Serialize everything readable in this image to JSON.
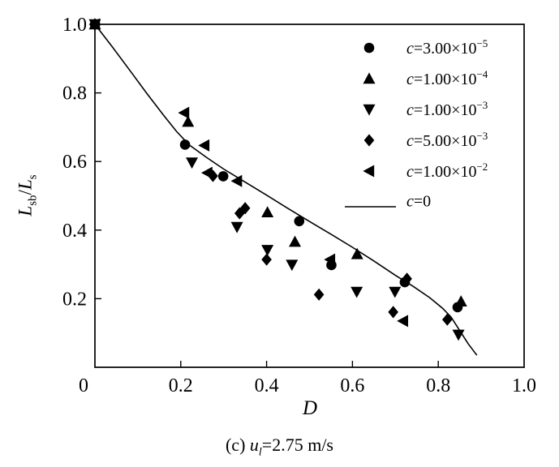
{
  "chart_data": {
    "type": "scatter",
    "title": "",
    "xlabel": "D",
    "ylabel": "Lsb/Ls",
    "ylabel_parts": {
      "num_var": "L",
      "num_sub": "sb",
      "divider": "/",
      "den_var": "L",
      "den_sub": "s"
    },
    "xlim": [
      0,
      1.0
    ],
    "ylim": [
      0,
      1.0
    ],
    "grid": "off",
    "legend_position": "top-right-inside",
    "x_ticks": [
      {
        "v": 0.0,
        "t": "0"
      },
      {
        "v": 0.2,
        "t": "0.2"
      },
      {
        "v": 0.4,
        "t": "0.4"
      },
      {
        "v": 0.6,
        "t": "0.6"
      },
      {
        "v": 0.8,
        "t": "0.8"
      },
      {
        "v": 1.0,
        "t": "1.0"
      }
    ],
    "y_ticks": [
      {
        "v": 0.2,
        "t": "0.2"
      },
      {
        "v": 0.4,
        "t": "0.4"
      },
      {
        "v": 0.6,
        "t": "0.6"
      },
      {
        "v": 0.8,
        "t": "0.8"
      },
      {
        "v": 1.0,
        "t": "1.0"
      }
    ],
    "series": [
      {
        "id": "c-3e-5",
        "marker": "circle",
        "label": {
          "var": "c",
          "base": "=3.00×10",
          "exp": "−5"
        },
        "points": [
          [
            0,
            1.0
          ],
          [
            0.21,
            0.649
          ],
          [
            0.299,
            0.557
          ],
          [
            0.476,
            0.426
          ],
          [
            0.551,
            0.298
          ],
          [
            0.722,
            0.248
          ],
          [
            0.845,
            0.175
          ]
        ]
      },
      {
        "id": "c-1e-4",
        "marker": "triangle-up",
        "label": {
          "var": "c",
          "base": "=1.00×10",
          "exp": "−4"
        },
        "points": [
          [
            0,
            1.0
          ],
          [
            0.217,
            0.716
          ],
          [
            0.402,
            0.452
          ],
          [
            0.466,
            0.366
          ],
          [
            0.611,
            0.33
          ],
          [
            0.853,
            0.192
          ]
        ]
      },
      {
        "id": "c-1e-3",
        "marker": "triangle-down",
        "label": {
          "var": "c",
          "base": "=1.00×10",
          "exp": "−3"
        },
        "points": [
          [
            0,
            1.0
          ],
          [
            0.226,
            0.597
          ],
          [
            0.331,
            0.409
          ],
          [
            0.402,
            0.342
          ],
          [
            0.459,
            0.299
          ],
          [
            0.61,
            0.22
          ],
          [
            0.699,
            0.22
          ],
          [
            0.847,
            0.095
          ]
        ]
      },
      {
        "id": "c-5e-3",
        "marker": "diamond",
        "label": {
          "var": "c",
          "base": "=5.00×10",
          "exp": "−3"
        },
        "points": [
          [
            0,
            1.0
          ],
          [
            0.275,
            0.558
          ],
          [
            0.337,
            0.449
          ],
          [
            0.35,
            0.464
          ],
          [
            0.4,
            0.314
          ],
          [
            0.522,
            0.212
          ],
          [
            0.695,
            0.161
          ],
          [
            0.727,
            0.258
          ],
          [
            0.821,
            0.139
          ]
        ]
      },
      {
        "id": "c-1e-2",
        "marker": "triangle-left",
        "label": {
          "var": "c",
          "base": "=1.00×10",
          "exp": "−2"
        },
        "points": [
          [
            0,
            1.0
          ],
          [
            0.208,
            0.742
          ],
          [
            0.255,
            0.647
          ],
          [
            0.262,
            0.567
          ],
          [
            0.331,
            0.543
          ],
          [
            0.548,
            0.314
          ],
          [
            0.718,
            0.135
          ]
        ]
      },
      {
        "id": "c-0",
        "marker": "line",
        "label": {
          "var": "c",
          "base": "=0",
          "exp": ""
        },
        "points": [
          [
            0,
            1.0
          ],
          [
            0.04,
            0.935
          ],
          [
            0.08,
            0.868
          ],
          [
            0.12,
            0.8
          ],
          [
            0.16,
            0.735
          ],
          [
            0.19,
            0.688
          ],
          [
            0.22,
            0.648
          ],
          [
            0.26,
            0.612
          ],
          [
            0.3,
            0.578
          ],
          [
            0.35,
            0.54
          ],
          [
            0.4,
            0.502
          ],
          [
            0.45,
            0.463
          ],
          [
            0.5,
            0.425
          ],
          [
            0.55,
            0.388
          ],
          [
            0.6,
            0.35
          ],
          [
            0.65,
            0.31
          ],
          [
            0.7,
            0.268
          ],
          [
            0.74,
            0.237
          ],
          [
            0.78,
            0.203
          ],
          [
            0.81,
            0.172
          ],
          [
            0.83,
            0.146
          ],
          [
            0.85,
            0.107
          ],
          [
            0.87,
            0.068
          ],
          [
            0.89,
            0.035
          ]
        ]
      }
    ],
    "caption": {
      "prefix": "(c) ",
      "var": "u",
      "sub": "l",
      "rest": "=2.75 m/s"
    },
    "colors": {
      "ink": "#000000",
      "background": "#ffffff"
    }
  }
}
